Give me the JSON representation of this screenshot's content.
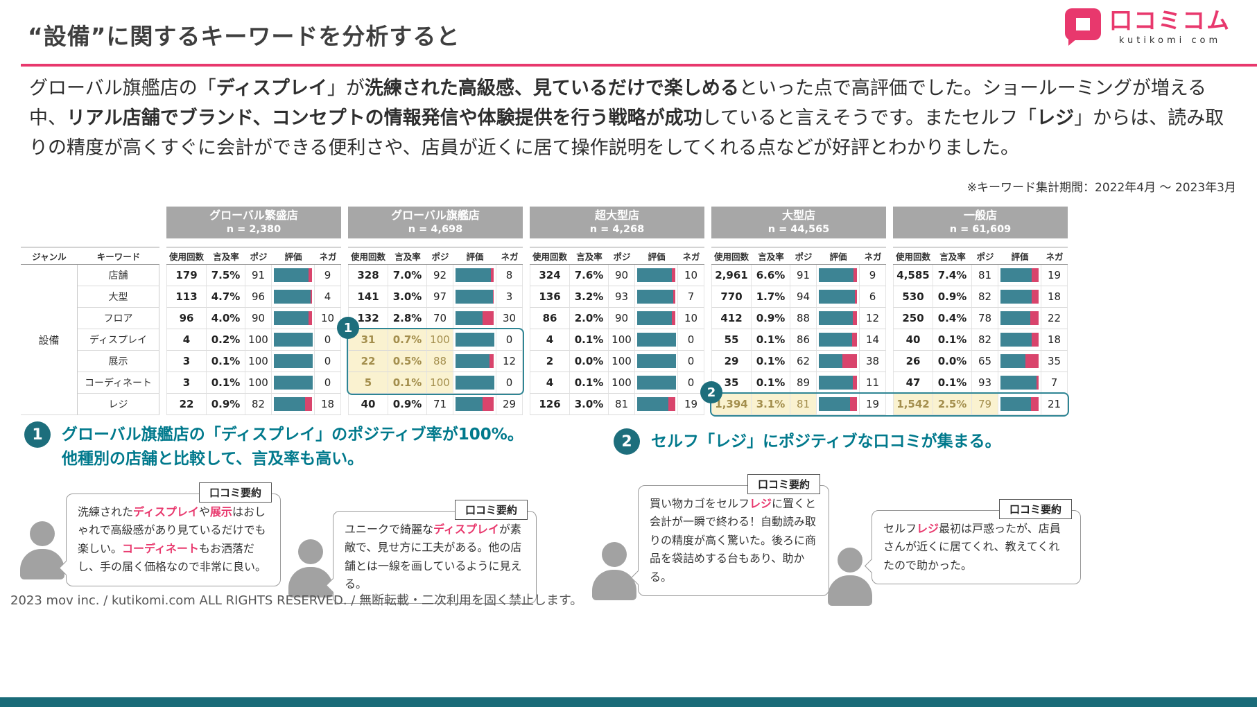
{
  "colors": {
    "accent_pink": "#e8386d",
    "bar_teal": "#3d8494",
    "bar_pink": "#d9446c",
    "annotation_teal": "#00798c",
    "badge_teal": "#1d6e7c",
    "group_header_gray": "#a7a7a7",
    "highlight_yellow": "#faf2d0"
  },
  "header": {
    "title": "“設備”に関するキーワードを分析すると",
    "logo_text": "口コミコム",
    "logo_sub": "kutikomi com"
  },
  "intro": {
    "segments": [
      {
        "t": "グローバル旗艦店の「"
      },
      {
        "t": "ディスプレイ",
        "c": "b"
      },
      {
        "t": "」が"
      },
      {
        "t": "洗練された高級感、見ているだけで楽しめる",
        "c": "b"
      },
      {
        "t": "といった点で高評価でした。ショールーミングが増える中、"
      },
      {
        "t": "リアル店舗でブランド、コンセプトの情報発信や体験提供を行う戦略が成功",
        "c": "b"
      },
      {
        "t": "していると言えそうです。またセルフ「"
      },
      {
        "t": "レジ",
        "c": "b"
      },
      {
        "t": "」からは、読み取りの精度が高くすぐに会計ができる便利さや、店員が近くに居て操作説明をしてくれる点などが好評とわかりました。"
      }
    ]
  },
  "period_note": "※キーワード集計期間：2022年4月 ～ 2023年3月",
  "table": {
    "genre_header": "ジャンル",
    "keyword_header": "キーワード",
    "genre": "設備",
    "col_headers": [
      "使用回数",
      "言及率",
      "ポジ",
      "評価",
      "ネガ"
    ],
    "groups": [
      {
        "name": "グローバル繁盛店",
        "n": "n = 2,380"
      },
      {
        "name": "グローバル旗艦店",
        "n": "n = 4,698"
      },
      {
        "name": "超大型店",
        "n": "n = 4,268"
      },
      {
        "name": "大型店",
        "n": "n = 44,565"
      },
      {
        "name": "一般店",
        "n": "n = 61,609"
      }
    ],
    "rows": [
      {
        "keyword": "店舗",
        "cells": [
          {
            "count": "179",
            "rate": "7.5%",
            "pos": 91,
            "neg": 9
          },
          {
            "count": "328",
            "rate": "7.0%",
            "pos": 92,
            "neg": 8
          },
          {
            "count": "324",
            "rate": "7.6%",
            "pos": 90,
            "neg": 10
          },
          {
            "count": "2,961",
            "rate": "6.6%",
            "pos": 91,
            "neg": 9
          },
          {
            "count": "4,585",
            "rate": "7.4%",
            "pos": 81,
            "neg": 19
          }
        ]
      },
      {
        "keyword": "大型",
        "cells": [
          {
            "count": "113",
            "rate": "4.7%",
            "pos": 96,
            "neg": 4
          },
          {
            "count": "141",
            "rate": "3.0%",
            "pos": 97,
            "neg": 3
          },
          {
            "count": "136",
            "rate": "3.2%",
            "pos": 93,
            "neg": 7
          },
          {
            "count": "770",
            "rate": "1.7%",
            "pos": 94,
            "neg": 6
          },
          {
            "count": "530",
            "rate": "0.9%",
            "pos": 82,
            "neg": 18
          }
        ]
      },
      {
        "keyword": "フロア",
        "cells": [
          {
            "count": "96",
            "rate": "4.0%",
            "pos": 90,
            "neg": 10
          },
          {
            "count": "132",
            "rate": "2.8%",
            "pos": 70,
            "neg": 30
          },
          {
            "count": "86",
            "rate": "2.0%",
            "pos": 90,
            "neg": 10
          },
          {
            "count": "412",
            "rate": "0.9%",
            "pos": 88,
            "neg": 12
          },
          {
            "count": "250",
            "rate": "0.4%",
            "pos": 78,
            "neg": 22
          }
        ]
      },
      {
        "keyword": "ディスプレイ",
        "cells": [
          {
            "count": "4",
            "rate": "0.2%",
            "pos": 100,
            "neg": 0
          },
          {
            "count": "31",
            "rate": "0.7%",
            "pos": 100,
            "neg": 0,
            "hl": true
          },
          {
            "count": "4",
            "rate": "0.1%",
            "pos": 100,
            "neg": 0
          },
          {
            "count": "55",
            "rate": "0.1%",
            "pos": 86,
            "neg": 14
          },
          {
            "count": "40",
            "rate": "0.1%",
            "pos": 82,
            "neg": 18
          }
        ]
      },
      {
        "keyword": "展示",
        "cells": [
          {
            "count": "3",
            "rate": "0.1%",
            "pos": 100,
            "neg": 0
          },
          {
            "count": "22",
            "rate": "0.5%",
            "pos": 88,
            "neg": 12,
            "hl": true
          },
          {
            "count": "2",
            "rate": "0.0%",
            "pos": 100,
            "neg": 0
          },
          {
            "count": "29",
            "rate": "0.1%",
            "pos": 62,
            "neg": 38
          },
          {
            "count": "26",
            "rate": "0.0%",
            "pos": 65,
            "neg": 35
          }
        ]
      },
      {
        "keyword": "コーディネート",
        "cells": [
          {
            "count": "3",
            "rate": "0.1%",
            "pos": 100,
            "neg": 0
          },
          {
            "count": "5",
            "rate": "0.1%",
            "pos": 100,
            "neg": 0,
            "hl": true
          },
          {
            "count": "4",
            "rate": "0.1%",
            "pos": 100,
            "neg": 0
          },
          {
            "count": "35",
            "rate": "0.1%",
            "pos": 89,
            "neg": 11
          },
          {
            "count": "47",
            "rate": "0.1%",
            "pos": 93,
            "neg": 7
          }
        ]
      },
      {
        "keyword": "レジ",
        "cells": [
          {
            "count": "22",
            "rate": "0.9%",
            "pos": 82,
            "neg": 18
          },
          {
            "count": "40",
            "rate": "0.9%",
            "pos": 71,
            "neg": 29
          },
          {
            "count": "126",
            "rate": "3.0%",
            "pos": 81,
            "neg": 19
          },
          {
            "count": "1,394",
            "rate": "3.1%",
            "pos": 81,
            "neg": 19,
            "hl": true
          },
          {
            "count": "1,542",
            "rate": "2.5%",
            "pos": 79,
            "neg": 21,
            "hl": true
          }
        ]
      }
    ]
  },
  "annotations": [
    {
      "num": "1",
      "line1": "グローバル旗艦店の「ディスプレイ」のポジティブ率が100%。",
      "line2": "他種別の店舗と比較して、言及率も高い。"
    },
    {
      "num": "2",
      "line1": "セルフ「レジ」にポジティブな口コミが集まる。",
      "line2": ""
    }
  ],
  "bubbles": [
    {
      "label": "口コミ要約",
      "segments": [
        {
          "t": "洗練された"
        },
        {
          "t": "ディスプレイ",
          "c": "p"
        },
        {
          "t": "や"
        },
        {
          "t": "展示",
          "c": "p"
        },
        {
          "t": "はおしゃれで高級感があり見ているだけでも楽しい。"
        },
        {
          "t": "コーディネート",
          "c": "p"
        },
        {
          "t": "もお洒落だし、手の届く価格なので非常に良い。"
        }
      ]
    },
    {
      "label": "口コミ要約",
      "segments": [
        {
          "t": "ユニークで綺麗な"
        },
        {
          "t": "ディスプレイ",
          "c": "p"
        },
        {
          "t": "が素敵で、見せ方に工夫がある。他の店舗とは一線を画しているように見える。"
        }
      ]
    },
    {
      "label": "口コミ要約",
      "segments": [
        {
          "t": "買い物カゴをセルフ"
        },
        {
          "t": "レジ",
          "c": "p"
        },
        {
          "t": "に置くと会計が一瞬で終わる！自動読み取りの精度が高く驚いた。後ろに商品を袋詰めする台もあり、助かる。"
        }
      ]
    },
    {
      "label": "口コミ要約",
      "segments": [
        {
          "t": "セルフ"
        },
        {
          "t": "レジ",
          "c": "p"
        },
        {
          "t": "最初は戸惑ったが、店員さんが近くに居てくれ、教えてくれたので助かった。"
        }
      ]
    }
  ],
  "footer": "2023 mov inc. / kutikomi.com ALL RIGHTS RESERVED. / 無断転載・二次利用を固く禁止します。"
}
